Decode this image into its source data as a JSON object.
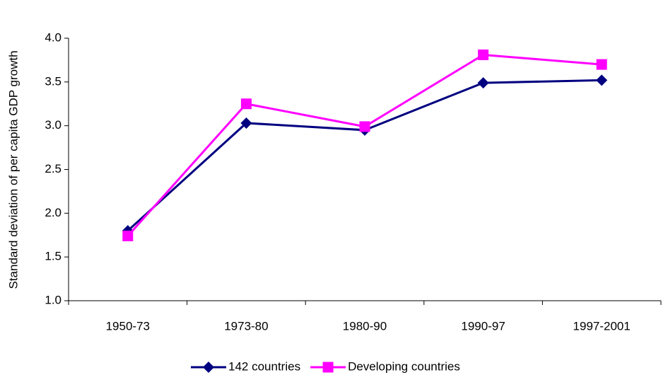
{
  "chart_data": {
    "type": "line",
    "y_label": "Standard deviation of per capita GDP growth",
    "categories": [
      "1950-73",
      "1973-80",
      "1980-90",
      "1990-97",
      "1997-2001"
    ],
    "series": [
      {
        "name": "142 countries",
        "color": "#000080",
        "marker": "diamond",
        "values": [
          1.8,
          3.03,
          2.95,
          3.49,
          3.52
        ]
      },
      {
        "name": "Developing countries",
        "color": "#ff00ff",
        "marker": "square",
        "values": [
          1.74,
          3.25,
          2.99,
          3.81,
          3.7
        ]
      }
    ],
    "ylim": [
      1.0,
      4.0
    ],
    "yticks": [
      {
        "value": 1.0,
        "label": "1.0"
      },
      1.5,
      {
        "value": 2.0,
        "label": "2.0"
      },
      2.5,
      {
        "value": 3.0,
        "label": "3.0"
      },
      3.5,
      {
        "value": 4.0,
        "label": "4.0"
      }
    ],
    "grid": false,
    "legend": "bottom"
  }
}
